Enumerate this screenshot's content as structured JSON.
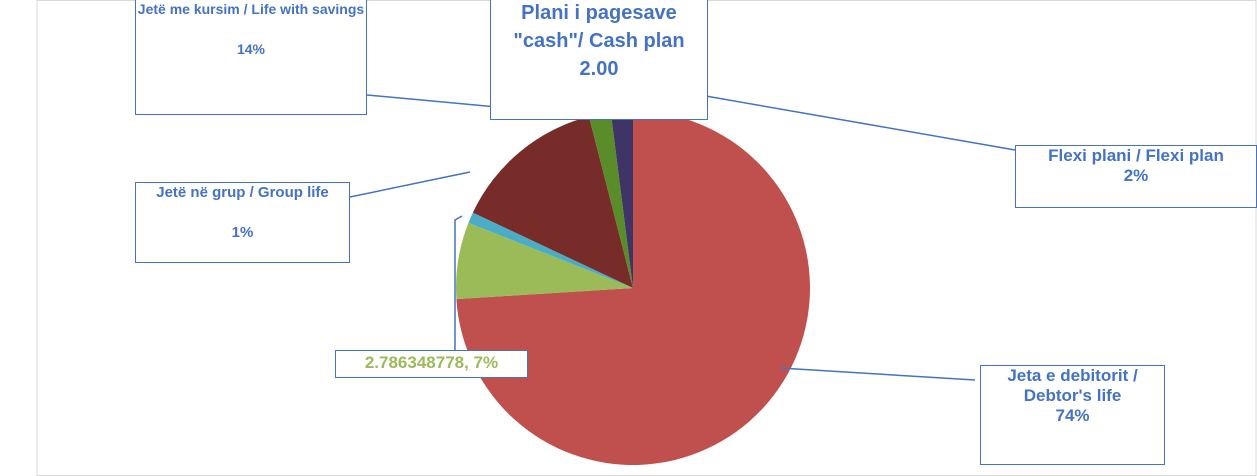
{
  "chart_data": {
    "type": "pie",
    "categories": [
      "Jeta e debitorit / Debtor's life",
      null,
      "Jetë në grup / Group life",
      "Jetë me kursim / Life with savings",
      "Plani i pagesave \"cash\"/ Cash plan",
      "Flexi plani / Flexi plan"
    ],
    "values": [
      74,
      7,
      1,
      14,
      2,
      2
    ],
    "value_labels": [
      "74%",
      "2.786348778, 7%",
      "1%",
      "14%",
      "2.00",
      "2%"
    ],
    "colors": [
      "#c0504d",
      "#9bbb59",
      "#4bacc6",
      "#772c2a",
      "#5b8c2a",
      "#3f3466"
    ]
  }
}
